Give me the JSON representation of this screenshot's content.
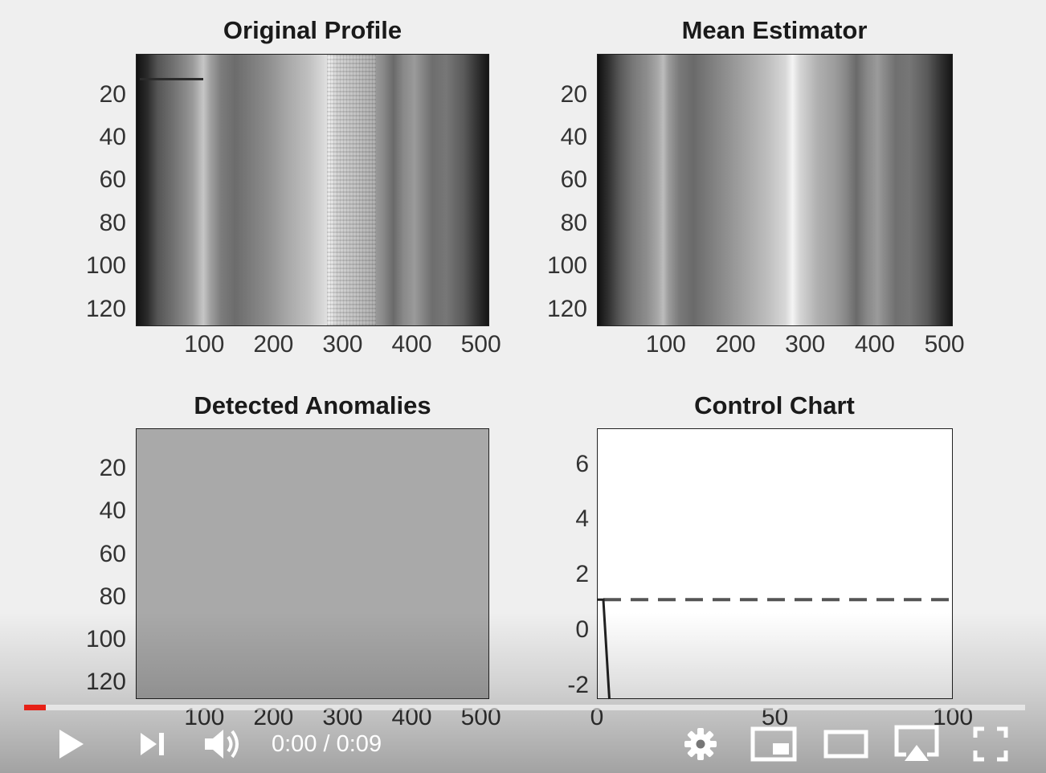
{
  "plots": [
    {
      "title": "Original Profile"
    },
    {
      "title": "Mean Estimator"
    },
    {
      "title": "Detected Anomalies"
    },
    {
      "title": "Control Chart"
    }
  ],
  "image_yticks": [
    "20",
    "40",
    "60",
    "80",
    "100",
    "120"
  ],
  "image_xticks": [
    "100",
    "200",
    "300",
    "400",
    "500"
  ],
  "chart_data": [
    {
      "type": "heatmap",
      "title": "Original Profile",
      "xlim": [
        1,
        512
      ],
      "ylim": [
        1,
        128
      ],
      "xticks": [
        100,
        200,
        300,
        400,
        500
      ],
      "yticks": [
        20,
        40,
        60,
        80,
        100,
        120
      ],
      "colormap": "gray"
    },
    {
      "type": "heatmap",
      "title": "Mean Estimator",
      "xlim": [
        1,
        512
      ],
      "ylim": [
        1,
        128
      ],
      "xticks": [
        100,
        200,
        300,
        400,
        500
      ],
      "yticks": [
        20,
        40,
        60,
        80,
        100,
        120
      ],
      "colormap": "gray"
    },
    {
      "type": "heatmap",
      "title": "Detected Anomalies",
      "xlim": [
        1,
        512
      ],
      "ylim": [
        1,
        128
      ],
      "xticks": [
        100,
        200,
        300,
        400,
        500
      ],
      "yticks": [
        20,
        40,
        60,
        80,
        100,
        120
      ],
      "colormap": "gray",
      "uniform_value_color": "#a9a9a9"
    },
    {
      "type": "line",
      "title": "Control Chart",
      "xlim": [
        0,
        100
      ],
      "ylim": [
        -2.5,
        7.3
      ],
      "xticks": [
        0,
        50,
        100
      ],
      "yticks": [
        -2,
        0,
        2,
        4,
        6
      ],
      "xtick_labels": [
        "0",
        "50",
        "100"
      ],
      "ytick_labels": [
        "-2",
        "0",
        "2",
        "4",
        "6"
      ],
      "series": [
        {
          "x": [
            0,
            1.8,
            3.5
          ],
          "y": [
            1.1,
            1.1,
            -2.5
          ],
          "style": "solid",
          "color": "#222222"
        }
      ],
      "threshold": {
        "y": 1.1,
        "style": "dashed",
        "color": "#555555"
      }
    }
  ],
  "player": {
    "time_current": "0:00",
    "time_separator": " / ",
    "time_total": "0:09",
    "progress": 0.022,
    "accent": "#e62117"
  }
}
